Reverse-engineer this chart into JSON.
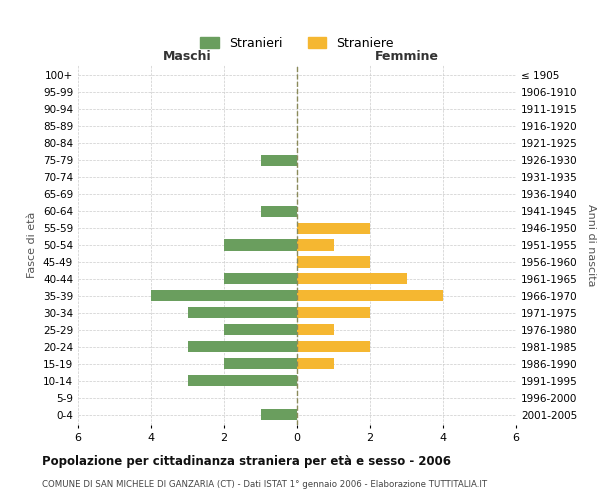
{
  "age_groups": [
    "100+",
    "95-99",
    "90-94",
    "85-89",
    "80-84",
    "75-79",
    "70-74",
    "65-69",
    "60-64",
    "55-59",
    "50-54",
    "45-49",
    "40-44",
    "35-39",
    "30-34",
    "25-29",
    "20-24",
    "15-19",
    "10-14",
    "5-9",
    "0-4"
  ],
  "birth_years": [
    "≤ 1905",
    "1906-1910",
    "1911-1915",
    "1916-1920",
    "1921-1925",
    "1926-1930",
    "1931-1935",
    "1936-1940",
    "1941-1945",
    "1946-1950",
    "1951-1955",
    "1956-1960",
    "1961-1965",
    "1966-1970",
    "1971-1975",
    "1976-1980",
    "1981-1985",
    "1986-1990",
    "1991-1995",
    "1996-2000",
    "2001-2005"
  ],
  "males": [
    0,
    0,
    0,
    0,
    0,
    1,
    0,
    0,
    1,
    0,
    2,
    0,
    2,
    4,
    3,
    2,
    3,
    2,
    3,
    0,
    1
  ],
  "females": [
    0,
    0,
    0,
    0,
    0,
    0,
    0,
    0,
    0,
    2,
    1,
    2,
    3,
    4,
    2,
    1,
    2,
    1,
    0,
    0,
    0
  ],
  "male_color": "#6a9e5e",
  "female_color": "#f5b731",
  "background_color": "#ffffff",
  "grid_color": "#cccccc",
  "center_line_color": "#8a8a5a",
  "title": "Popolazione per cittadinanza straniera per età e sesso - 2006",
  "subtitle": "COMUNE DI SAN MICHELE DI GANZARIA (CT) - Dati ISTAT 1° gennaio 2006 - Elaborazione TUTTITALIA.IT",
  "xlabel_left": "Maschi",
  "xlabel_right": "Femmine",
  "ylabel_left": "Fasce di età",
  "ylabel_right": "Anni di nascita",
  "legend_male": "Stranieri",
  "legend_female": "Straniere",
  "xlim": 6,
  "bar_height": 0.65
}
